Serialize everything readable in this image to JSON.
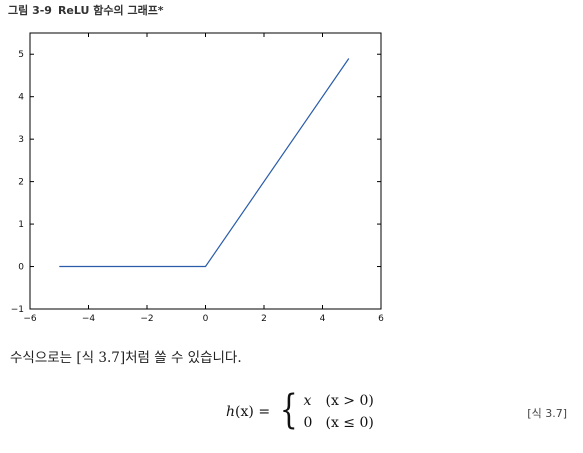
{
  "caption": {
    "figure_number": "그림 3-9",
    "title": "ReLU 함수의 그래프*"
  },
  "chart_data": {
    "type": "line",
    "title": "",
    "xlabel": "",
    "ylabel": "",
    "xlim": [
      -6,
      6
    ],
    "ylim": [
      -1,
      5.5
    ],
    "xticks": [
      -6,
      -4,
      -2,
      0,
      2,
      4,
      6
    ],
    "xtick_labels": [
      "−6",
      "−4",
      "−2",
      "0",
      "2",
      "4",
      "6"
    ],
    "yticks": [
      -1,
      0,
      1,
      2,
      3,
      4,
      5
    ],
    "ytick_labels": [
      "−1",
      "0",
      "1",
      "2",
      "3",
      "4",
      "5"
    ],
    "grid": false,
    "series": [
      {
        "x": [
          -5.0,
          0.0,
          4.9
        ],
        "y": [
          0.0,
          0.0,
          4.9
        ],
        "color": "#2a5caa"
      }
    ]
  },
  "text": {
    "paragraph": "수식으로는 [식 3.7]처럼 쓸 수 있습니다."
  },
  "equation": {
    "lhs_func": "h",
    "lhs_arg": "(x)",
    "equals": "=",
    "brace": "{",
    "cases": [
      {
        "value": "x",
        "condition": "(x > 0)"
      },
      {
        "value": "0",
        "condition": "(x ≤ 0)"
      }
    ],
    "tag": "[식 3.7]"
  }
}
